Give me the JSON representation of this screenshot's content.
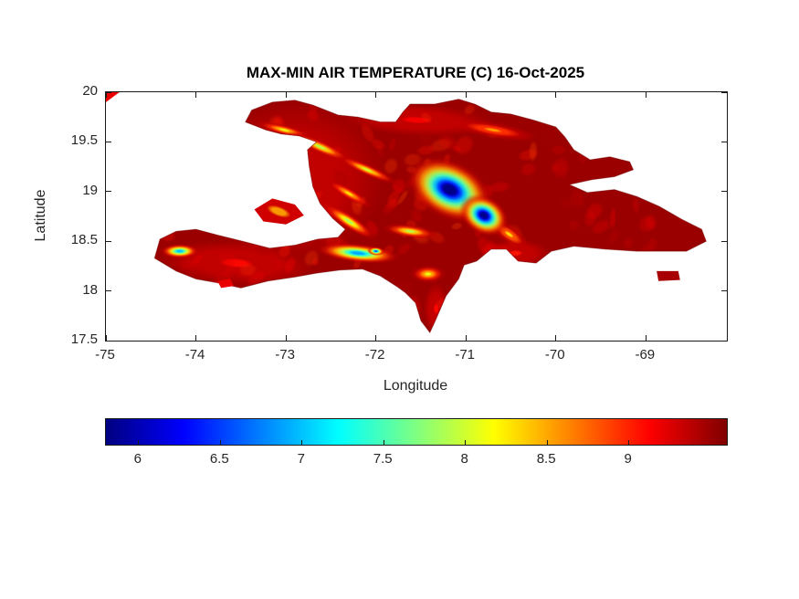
{
  "figure": {
    "background": "#ffffff"
  },
  "colors": {
    "axis": "#1a1a1a",
    "tick_text": "#262626",
    "title_text": "#000000"
  },
  "chart_data": {
    "type": "heatmap",
    "title": "MAX-MIN AIR TEMPERATURE (C) 16-Oct-2025",
    "xlabel": "Longitude",
    "ylabel": "Latitude",
    "region": "Hispaniola (Haiti and Dominican Republic) with eastern Cuba corner",
    "xlim": [
      -75,
      -68.1
    ],
    "ylim": [
      17.5,
      20
    ],
    "x_ticks": [
      -75,
      -74,
      -73,
      -72,
      -71,
      -70,
      -69
    ],
    "y_ticks": [
      20,
      19.5,
      19,
      18.5,
      18,
      17.5
    ],
    "grid": false,
    "colorbar": {
      "colormap": "jet",
      "orientation": "horizontal",
      "range": [
        5.8,
        9.6
      ],
      "ticks": [
        6,
        6.5,
        7,
        7.5,
        8,
        8.5,
        9
      ]
    },
    "background_value_c": 9.5,
    "features": [
      {
        "name": "haiti-warm-wash",
        "lon": -72.95,
        "lat": 19.1,
        "rx_deg": 1.05,
        "ry_deg": 0.8,
        "rot_deg": -8,
        "min_value_c": 9.1
      },
      {
        "name": "north-coast-wash",
        "lon": -71.55,
        "lat": 19.72,
        "rx_deg": 0.85,
        "ry_deg": 0.16,
        "rot_deg": 3,
        "min_value_c": 9.15
      },
      {
        "name": "tiburon-wash",
        "lon": -73.55,
        "lat": 18.28,
        "rx_deg": 0.85,
        "ry_deg": 0.22,
        "rot_deg": 4,
        "min_value_c": 9.1
      },
      {
        "name": "azua-bani-coast-wash",
        "lon": -70.45,
        "lat": 18.38,
        "rx_deg": 0.38,
        "ry_deg": 0.14,
        "rot_deg": 0,
        "min_value_c": 9.05
      },
      {
        "name": "barahona-peninsula-wash",
        "lon": -71.33,
        "lat": 17.82,
        "rx_deg": 0.14,
        "ry_deg": 0.26,
        "rot_deg": 0,
        "min_value_c": 9.1
      },
      {
        "name": "nw-peninsula-ridge",
        "lon": -73.02,
        "lat": 19.62,
        "rx_deg": 0.33,
        "ry_deg": 0.055,
        "rot_deg": 14,
        "min_value_c": 8.1
      },
      {
        "name": "massif-du-nord-west",
        "lon": -72.62,
        "lat": 19.45,
        "rx_deg": 0.4,
        "ry_deg": 0.07,
        "rot_deg": 24,
        "min_value_c": 7.9
      },
      {
        "name": "massif-du-nord-east",
        "lon": -72.1,
        "lat": 19.22,
        "rx_deg": 0.38,
        "ry_deg": 0.06,
        "rot_deg": 24,
        "min_value_c": 8.0
      },
      {
        "name": "montagnes-noires",
        "lon": -72.3,
        "lat": 18.98,
        "rx_deg": 0.3,
        "ry_deg": 0.06,
        "rot_deg": 30,
        "min_value_c": 8.25
      },
      {
        "name": "chaine-des-matheux",
        "lon": -72.3,
        "lat": 18.7,
        "rx_deg": 0.36,
        "ry_deg": 0.075,
        "rot_deg": 33,
        "min_value_c": 7.85
      },
      {
        "name": "sierra-de-neiba",
        "lon": -71.62,
        "lat": 18.6,
        "rx_deg": 0.32,
        "ry_deg": 0.07,
        "rot_deg": 8,
        "min_value_c": 7.9
      },
      {
        "name": "cordillera-septentrional",
        "lon": -70.7,
        "lat": 19.62,
        "rx_deg": 0.5,
        "ry_deg": 0.08,
        "rot_deg": 10,
        "min_value_c": 8.55
      },
      {
        "name": "sierra-de-bahoruco",
        "lon": -71.42,
        "lat": 18.17,
        "rx_deg": 0.2,
        "ry_deg": 0.09,
        "rot_deg": 0,
        "min_value_c": 8.1
      },
      {
        "name": "cordillera-central-south-tail",
        "lon": -70.52,
        "lat": 18.57,
        "rx_deg": 0.28,
        "ry_deg": 0.09,
        "rot_deg": 35,
        "min_value_c": 8.3
      },
      {
        "name": "massif-de-la-hotte",
        "lon": -74.18,
        "lat": 18.4,
        "rx_deg": 0.22,
        "ry_deg": 0.075,
        "rot_deg": 0,
        "min_value_c": 7.0
      },
      {
        "name": "massif-de-la-selle-ridge",
        "lon": -72.2,
        "lat": 18.38,
        "rx_deg": 0.48,
        "ry_deg": 0.1,
        "rot_deg": 6,
        "min_value_c": 6.9
      },
      {
        "name": "pic-la-selle-core",
        "lon": -72.0,
        "lat": 18.4,
        "rx_deg": 0.1,
        "ry_deg": 0.045,
        "rot_deg": 5,
        "min_value_c": 6.6
      },
      {
        "name": "cordillera-central-main",
        "lon": -71.18,
        "lat": 19.02,
        "rx_deg": 0.52,
        "ry_deg": 0.3,
        "rot_deg": 27,
        "min_value_c": 5.8
      },
      {
        "name": "cordillera-central-southeast",
        "lon": -70.8,
        "lat": 18.76,
        "rx_deg": 0.3,
        "ry_deg": 0.2,
        "rot_deg": 30,
        "min_value_c": 5.85
      }
    ],
    "island_outline": [
      [
        -73.45,
        19.7
      ],
      [
        -73.38,
        19.82
      ],
      [
        -73.15,
        19.9
      ],
      [
        -72.9,
        19.92
      ],
      [
        -72.7,
        19.87
      ],
      [
        -72.42,
        19.77
      ],
      [
        -72.2,
        19.75
      ],
      [
        -71.95,
        19.7
      ],
      [
        -71.78,
        19.7
      ],
      [
        -71.7,
        19.8
      ],
      [
        -71.62,
        19.88
      ],
      [
        -71.35,
        19.88
      ],
      [
        -71.08,
        19.93
      ],
      [
        -70.9,
        19.88
      ],
      [
        -70.72,
        19.8
      ],
      [
        -70.5,
        19.78
      ],
      [
        -70.25,
        19.72
      ],
      [
        -70.0,
        19.65
      ],
      [
        -69.9,
        19.55
      ],
      [
        -69.8,
        19.42
      ],
      [
        -69.62,
        19.32
      ],
      [
        -69.4,
        19.35
      ],
      [
        -69.18,
        19.3
      ],
      [
        -69.14,
        19.22
      ],
      [
        -69.35,
        19.15
      ],
      [
        -69.6,
        19.12
      ],
      [
        -69.85,
        19.07
      ],
      [
        -69.65,
        18.99
      ],
      [
        -69.35,
        19.02
      ],
      [
        -69.1,
        18.95
      ],
      [
        -68.85,
        18.85
      ],
      [
        -68.6,
        18.72
      ],
      [
        -68.38,
        18.62
      ],
      [
        -68.33,
        18.5
      ],
      [
        -68.55,
        18.4
      ],
      [
        -68.8,
        18.4
      ],
      [
        -69.1,
        18.4
      ],
      [
        -69.45,
        18.42
      ],
      [
        -69.8,
        18.45
      ],
      [
        -70.05,
        18.4
      ],
      [
        -70.22,
        18.28
      ],
      [
        -70.42,
        18.3
      ],
      [
        -70.55,
        18.42
      ],
      [
        -70.72,
        18.42
      ],
      [
        -70.88,
        18.3
      ],
      [
        -71.02,
        18.26
      ],
      [
        -71.08,
        18.12
      ],
      [
        -71.22,
        17.95
      ],
      [
        -71.34,
        17.7
      ],
      [
        -71.4,
        17.58
      ],
      [
        -71.5,
        17.7
      ],
      [
        -71.56,
        17.88
      ],
      [
        -71.67,
        17.98
      ],
      [
        -71.76,
        18.04
      ],
      [
        -71.95,
        18.15
      ],
      [
        -72.15,
        18.22
      ],
      [
        -72.4,
        18.21
      ],
      [
        -72.65,
        18.18
      ],
      [
        -72.9,
        18.14
      ],
      [
        -73.2,
        18.1
      ],
      [
        -73.5,
        18.03
      ],
      [
        -73.75,
        18.08
      ],
      [
        -74.0,
        18.12
      ],
      [
        -74.22,
        18.2
      ],
      [
        -74.46,
        18.33
      ],
      [
        -74.4,
        18.52
      ],
      [
        -74.22,
        18.6
      ],
      [
        -74.0,
        18.62
      ],
      [
        -73.75,
        18.56
      ],
      [
        -73.48,
        18.5
      ],
      [
        -73.18,
        18.43
      ],
      [
        -72.9,
        18.46
      ],
      [
        -72.65,
        18.52
      ],
      [
        -72.42,
        18.54
      ],
      [
        -72.34,
        18.62
      ],
      [
        -72.48,
        18.73
      ],
      [
        -72.62,
        18.88
      ],
      [
        -72.7,
        19.05
      ],
      [
        -72.74,
        19.25
      ],
      [
        -72.76,
        19.42
      ],
      [
        -72.66,
        19.5
      ],
      [
        -72.85,
        19.56
      ],
      [
        -73.05,
        19.58
      ],
      [
        -73.22,
        19.62
      ]
    ],
    "islets": {
      "gonave": [
        [
          -73.35,
          18.82
        ],
        [
          -73.15,
          18.93
        ],
        [
          -72.9,
          18.87
        ],
        [
          -72.8,
          18.76
        ],
        [
          -73.0,
          18.67
        ],
        [
          -73.25,
          18.7
        ]
      ],
      "ile_a_vache": [
        [
          -73.76,
          18.1
        ],
        [
          -73.62,
          18.12
        ],
        [
          -73.58,
          18.05
        ],
        [
          -73.72,
          18.03
        ]
      ],
      "saona": [
        [
          -68.88,
          18.2
        ],
        [
          -68.64,
          18.2
        ],
        [
          -68.62,
          18.11
        ],
        [
          -68.86,
          18.1
        ]
      ],
      "cuba_corner": [
        [
          -75.0,
          20.0
        ],
        [
          -74.85,
          20.0
        ],
        [
          -75.0,
          19.9
        ]
      ]
    }
  }
}
